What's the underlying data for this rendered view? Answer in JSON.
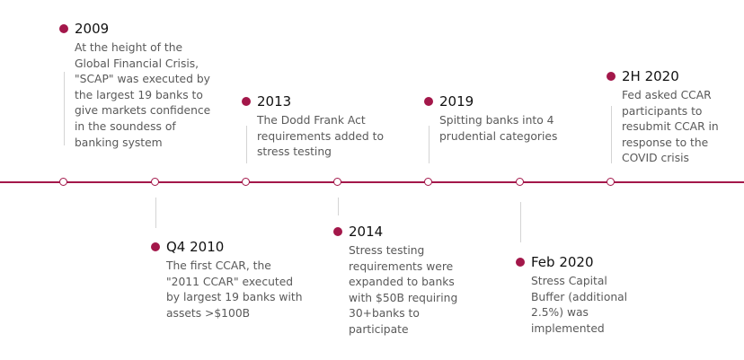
{
  "accent_color": "#a3174a",
  "events": [
    {
      "title": "2009",
      "description": "At the height of the\nGlobal Financial Crisis,\n\"SCAP\" was executed by\nthe largest 19 banks to\ngive markets confidence\nin the soundess of\nbanking system"
    },
    {
      "title": "Q4 2010",
      "description": "The first CCAR, the\n\"2011 CCAR\" executed\nby largest 19 banks with\nassets >$100B"
    },
    {
      "title": "2013",
      "description": "The Dodd Frank Act\nrequirements added to\nstress testing"
    },
    {
      "title": "2014",
      "description": "Stress testing\nrequirements were\nexpanded to banks\nwith $50B requiring\n30+banks to\nparticipate"
    },
    {
      "title": "2019",
      "description": "Spitting banks into 4\nprudential categories"
    },
    {
      "title": "Feb 2020",
      "description": "Stress Capital\nBuffer  (additional\n2.5%) was\nimplemented"
    },
    {
      "title": "2H 2020",
      "description": "Fed asked CCAR\nparticipants to\nresubmit CCAR in\nresponse to the\nCOVID crisis"
    }
  ]
}
